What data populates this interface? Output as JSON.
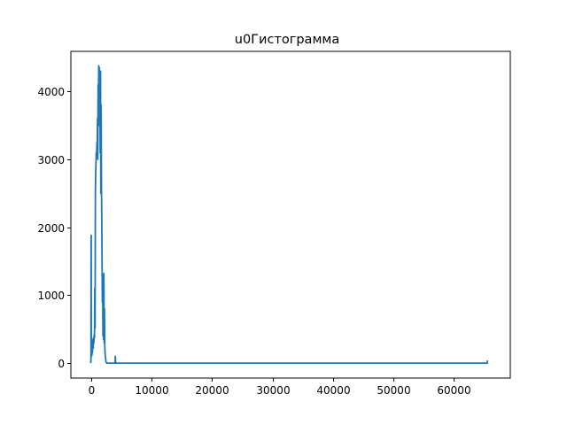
{
  "chart_data": {
    "type": "line",
    "title": "u0Гистограмма",
    "xlabel": "",
    "ylabel": "",
    "xlim": [
      -3300,
      69300
    ],
    "ylim": [
      -220,
      4590
    ],
    "xticks": [
      0,
      10000,
      20000,
      30000,
      40000,
      50000,
      60000
    ],
    "xtick_labels": [
      "0",
      "10000",
      "20000",
      "30000",
      "40000",
      "50000",
      "60000"
    ],
    "yticks": [
      0,
      1000,
      2000,
      3000,
      4000
    ],
    "ytick_labels": [
      "0",
      "1000",
      "2000",
      "3000",
      "4000"
    ],
    "grid": false,
    "series": [
      {
        "color": "#1f77b4",
        "x": [
          0,
          20,
          40,
          60,
          80,
          100,
          120,
          150,
          180,
          220,
          260,
          300,
          350,
          400,
          450,
          500,
          550,
          600,
          650,
          700,
          750,
          800,
          850,
          900,
          950,
          1000,
          1050,
          1100,
          1150,
          1200,
          1250,
          1300,
          1350,
          1400,
          1450,
          1500,
          1550,
          1600,
          1650,
          1700,
          1750,
          1800,
          1850,
          1900,
          1950,
          2000,
          2050,
          2100,
          2150,
          2200,
          2250,
          2300,
          2350,
          2400,
          2450,
          2500,
          2550,
          2600,
          2650,
          2700,
          2750,
          2800,
          2900,
          3000,
          3200,
          3500,
          3800,
          3900,
          4000,
          4050,
          4100,
          5000,
          10000,
          20000,
          30000,
          40000,
          50000,
          60000,
          65000,
          65400,
          65500,
          65535
        ],
        "y": [
          0,
          120,
          1850,
          1880,
          150,
          130,
          100,
          180,
          120,
          200,
          160,
          250,
          350,
          220,
          380,
          300,
          420,
          380,
          1100,
          520,
          2500,
          2800,
          2950,
          3100,
          3050,
          3250,
          3200,
          3600,
          3000,
          4100,
          3700,
          4380,
          3500,
          4350,
          3650,
          4200,
          3100,
          4300,
          2500,
          3800,
          2600,
          2200,
          1500,
          900,
          1200,
          400,
          1300,
          350,
          1320,
          300,
          800,
          250,
          150,
          100,
          50,
          20,
          10,
          5,
          0,
          0,
          0,
          0,
          0,
          0,
          0,
          0,
          0,
          0,
          0,
          100,
          0,
          0,
          0,
          0,
          0,
          0,
          0,
          0,
          0,
          0,
          0,
          40
        ]
      }
    ]
  }
}
